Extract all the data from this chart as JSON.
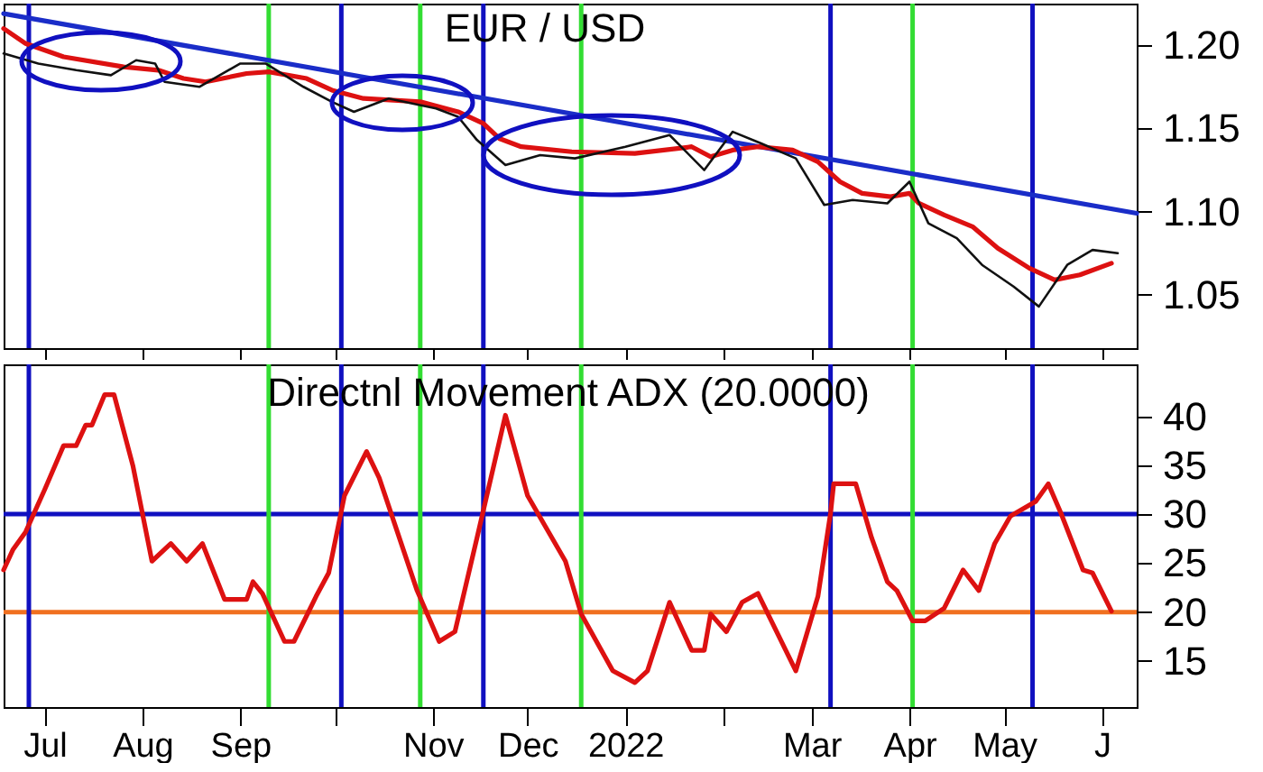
{
  "chart_data": [
    {
      "type": "line",
      "title": "EUR / USD",
      "xlim": [
        "2021-06-18",
        "2022-06-12"
      ],
      "ylim": [
        1.018,
        1.225
      ],
      "yticks": [
        {
          "value": 1.05,
          "label": "1.05"
        },
        {
          "value": 1.1,
          "label": "1.10"
        },
        {
          "value": 1.15,
          "label": "1.15"
        },
        {
          "value": 1.2,
          "label": "1.20"
        }
      ],
      "xticks": [
        {
          "value": "2021-07-01",
          "label": null
        },
        {
          "value": "2021-08-01",
          "label": null
        },
        {
          "value": "2021-09-01",
          "label": null
        },
        {
          "value": "2021-10-01",
          "label": null
        },
        {
          "value": "2021-11-01",
          "label": null
        },
        {
          "value": "2021-12-01",
          "label": null
        },
        {
          "value": "2022-01-01",
          "label": null
        },
        {
          "value": "2022-02-01",
          "label": null
        },
        {
          "value": "2022-03-01",
          "label": null
        },
        {
          "value": "2022-04-01",
          "label": null
        },
        {
          "value": "2022-05-01",
          "label": null
        },
        {
          "value": "2022-06-01",
          "label": null
        }
      ],
      "tick_labels": "y",
      "grid": false,
      "marker": "none",
      "line_style": "solid",
      "ref_lines": [
        {
          "axis": "x",
          "value": "2021-06-26",
          "color": "#1010c0"
        },
        {
          "axis": "x",
          "value": "2021-10-03",
          "color": "#1010c0"
        },
        {
          "axis": "x",
          "value": "2021-11-17",
          "color": "#1010c0"
        },
        {
          "axis": "x",
          "value": "2022-03-07",
          "color": "#1010c0"
        },
        {
          "axis": "x",
          "value": "2022-05-10",
          "color": "#1010c0"
        },
        {
          "axis": "x",
          "value": "2021-09-10",
          "color": "#33dd33"
        },
        {
          "axis": "x",
          "value": "2021-10-28",
          "color": "#33dd33"
        },
        {
          "axis": "x",
          "value": "2021-12-18",
          "color": "#33dd33"
        },
        {
          "axis": "x",
          "value": "2022-04-02",
          "color": "#33dd33"
        }
      ],
      "series": [
        {
          "color": "#111111",
          "x": [
            "2021-06-18",
            "2021-06-29",
            "2021-07-11",
            "2021-07-22",
            "2021-07-30",
            "2021-08-05",
            "2021-08-08",
            "2021-08-19",
            "2021-09-01",
            "2021-09-09",
            "2021-09-21",
            "2021-09-30",
            "2021-10-07",
            "2021-10-18",
            "2021-11-02",
            "2021-11-09",
            "2021-11-15",
            "2021-11-24",
            "2021-12-05",
            "2021-12-16",
            "2022-01-01",
            "2022-01-15",
            "2022-01-26",
            "2022-02-04",
            "2022-02-13",
            "2022-02-24",
            "2022-03-05",
            "2022-03-14",
            "2022-03-25",
            "2022-04-01",
            "2022-04-07",
            "2022-04-16",
            "2022-04-24",
            "2022-05-04",
            "2022-05-12",
            "2022-05-21",
            "2022-05-29",
            "2022-06-06"
          ],
          "values": [
            1.195,
            1.189,
            1.185,
            1.182,
            1.191,
            1.189,
            1.178,
            1.175,
            1.189,
            1.189,
            1.175,
            1.166,
            1.16,
            1.168,
            1.162,
            1.157,
            1.143,
            1.128,
            1.134,
            1.132,
            1.139,
            1.146,
            1.125,
            1.148,
            1.141,
            1.132,
            1.104,
            1.107,
            1.105,
            1.118,
            1.093,
            1.084,
            1.068,
            1.055,
            1.043,
            1.068,
            1.077,
            1.075
          ]
        },
        {
          "color": "#dd1111",
          "x": [
            "2021-06-18",
            "2021-06-25",
            "2021-07-07",
            "2021-07-26",
            "2021-08-06",
            "2021-08-14",
            "2021-08-21",
            "2021-09-03",
            "2021-09-10",
            "2021-09-22",
            "2021-09-30",
            "2021-10-10",
            "2021-10-28",
            "2021-11-09",
            "2021-11-17",
            "2021-11-22",
            "2021-11-29",
            "2021-12-15",
            "2022-01-04",
            "2022-01-22",
            "2022-01-28",
            "2022-02-04",
            "2022-02-12",
            "2022-02-23",
            "2022-03-03",
            "2022-03-10",
            "2022-03-17",
            "2022-03-26",
            "2022-04-01",
            "2022-04-04",
            "2022-04-12",
            "2022-04-21",
            "2022-04-29",
            "2022-05-09",
            "2022-05-17",
            "2022-05-25",
            "2022-06-04"
          ],
          "values": [
            1.21,
            1.201,
            1.193,
            1.187,
            1.185,
            1.18,
            1.178,
            1.183,
            1.184,
            1.18,
            1.173,
            1.168,
            1.166,
            1.16,
            1.153,
            1.144,
            1.139,
            1.136,
            1.135,
            1.139,
            1.133,
            1.137,
            1.139,
            1.137,
            1.13,
            1.118,
            1.111,
            1.109,
            1.111,
            1.105,
            1.098,
            1.091,
            1.078,
            1.066,
            1.059,
            1.062,
            1.069
          ]
        },
        {
          "color": "#1a2dc8",
          "x": [
            "2021-06-18",
            "2022-06-12"
          ],
          "values": [
            1.219,
            1.099
          ]
        }
      ]
    },
    {
      "type": "line",
      "title": "Directnl Movement ADX (20.0000)",
      "xlim": [
        "2021-06-18",
        "2022-06-12"
      ],
      "ylim": [
        10.3,
        45.3
      ],
      "yticks": [
        15,
        20,
        25,
        30,
        35,
        40
      ],
      "xticks": [
        {
          "value": "2021-07-01",
          "label": "Jul"
        },
        {
          "value": "2021-08-01",
          "label": "Aug"
        },
        {
          "value": "2021-09-01",
          "label": "Sep"
        },
        {
          "value": "2021-10-01",
          "label": null
        },
        {
          "value": "2021-11-01",
          "label": "Nov"
        },
        {
          "value": "2021-12-01",
          "label": "Dec"
        },
        {
          "value": "2022-01-01",
          "label": "2022"
        },
        {
          "value": "2022-02-01",
          "label": null
        },
        {
          "value": "2022-03-01",
          "label": "Mar"
        },
        {
          "value": "2022-04-01",
          "label": "Apr"
        },
        {
          "value": "2022-05-01",
          "label": "May"
        },
        {
          "value": "2022-06-01",
          "label": "J"
        }
      ],
      "grid": false,
      "marker": "none",
      "line_style": "solid",
      "ref_lines": [
        {
          "axis": "y",
          "value": 30,
          "color": "#1010c0"
        },
        {
          "axis": "y",
          "value": 20,
          "color": "#f07020"
        },
        {
          "axis": "x",
          "value": "2021-06-26",
          "color": "#1010c0"
        },
        {
          "axis": "x",
          "value": "2021-10-03",
          "color": "#1010c0"
        },
        {
          "axis": "x",
          "value": "2021-11-17",
          "color": "#1010c0"
        },
        {
          "axis": "x",
          "value": "2022-03-07",
          "color": "#1010c0"
        },
        {
          "axis": "x",
          "value": "2022-05-10",
          "color": "#1010c0"
        },
        {
          "axis": "x",
          "value": "2021-09-10",
          "color": "#33dd33"
        },
        {
          "axis": "x",
          "value": "2021-10-28",
          "color": "#33dd33"
        },
        {
          "axis": "x",
          "value": "2021-12-18",
          "color": "#33dd33"
        },
        {
          "axis": "x",
          "value": "2022-04-02",
          "color": "#33dd33"
        }
      ],
      "series": [
        {
          "color": "#dd1111",
          "x": [
            "2021-06-18",
            "2021-06-21",
            "2021-06-25",
            "2021-07-01",
            "2021-07-07",
            "2021-07-11",
            "2021-07-14",
            "2021-07-16",
            "2021-07-20",
            "2021-07-23",
            "2021-07-29",
            "2021-08-04",
            "2021-08-10",
            "2021-08-15",
            "2021-08-20",
            "2021-08-27",
            "2021-09-03",
            "2021-09-05",
            "2021-09-08",
            "2021-09-15",
            "2021-09-18",
            "2021-09-25",
            "2021-09-29",
            "2021-10-04",
            "2021-10-11",
            "2021-10-15",
            "2021-10-27",
            "2021-11-03",
            "2021-11-08",
            "2021-11-15",
            "2021-11-24",
            "2021-12-01",
            "2021-12-13",
            "2021-12-18",
            "2021-12-28",
            "2022-01-04",
            "2022-01-08",
            "2022-01-15",
            "2022-01-22",
            "2022-01-26",
            "2022-01-28",
            "2022-02-02",
            "2022-02-07",
            "2022-02-12",
            "2022-02-24",
            "2022-03-03",
            "2022-03-07",
            "2022-03-08",
            "2022-03-15",
            "2022-03-20",
            "2022-03-25",
            "2022-03-28",
            "2022-04-02",
            "2022-04-06",
            "2022-04-12",
            "2022-04-18",
            "2022-04-23",
            "2022-04-28",
            "2022-05-03",
            "2022-05-11",
            "2022-05-15",
            "2022-05-19",
            "2022-05-26",
            "2022-05-29",
            "2022-06-04"
          ],
          "values": [
            24.3,
            26.4,
            28.2,
            32.5,
            37.0,
            37.0,
            39.1,
            39.1,
            42.2,
            42.2,
            34.9,
            25.2,
            27.0,
            25.2,
            27.0,
            21.3,
            21.3,
            23.1,
            21.9,
            17.0,
            17.0,
            21.6,
            24.0,
            31.9,
            36.4,
            33.7,
            22.2,
            17.0,
            18.0,
            27.6,
            40.1,
            31.9,
            25.2,
            19.8,
            14.0,
            12.8,
            14.0,
            21.0,
            16.1,
            16.1,
            19.8,
            18.0,
            21.0,
            21.9,
            14.0,
            21.6,
            30.1,
            33.1,
            33.1,
            27.6,
            23.1,
            22.2,
            19.1,
            19.1,
            20.4,
            24.3,
            22.2,
            27.0,
            29.8,
            31.3,
            33.1,
            30.1,
            24.3,
            24.0,
            20.1
          ]
        }
      ]
    }
  ]
}
